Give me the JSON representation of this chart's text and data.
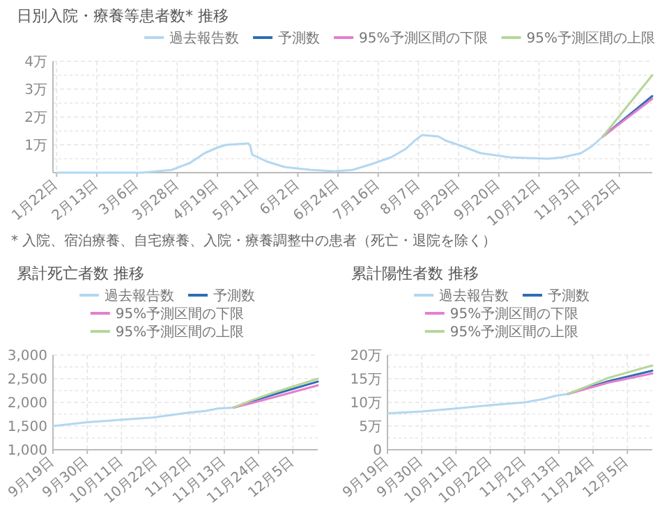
{
  "chart_data": [
    {
      "type": "line",
      "title": "日別入院・療養等患者数* 推移",
      "legend": "top right",
      "grid": true,
      "xlim": [
        "--01-20",
        "--12-13"
      ],
      "xticks": [
        {
          "value": "--01-22",
          "label": "1月22日"
        },
        {
          "value": "--02-13",
          "label": "2月13日"
        },
        {
          "value": "--03-06",
          "label": "3月6日"
        },
        {
          "value": "--03-28",
          "label": "3月28日"
        },
        {
          "value": "--04-19",
          "label": "4月19日"
        },
        {
          "value": "--05-11",
          "label": "5月11日"
        },
        {
          "value": "--06-02",
          "label": "6月2日"
        },
        {
          "value": "--06-24",
          "label": "6月24日"
        },
        {
          "value": "--07-16",
          "label": "7月16日"
        },
        {
          "value": "--08-07",
          "label": "8月7日"
        },
        {
          "value": "--08-29",
          "label": "8月29日"
        },
        {
          "value": "--09-20",
          "label": "9月20日"
        },
        {
          "value": "--10-12",
          "label": "10月12日"
        },
        {
          "value": "--11-03",
          "label": "11月3日"
        },
        {
          "value": "--11-25",
          "label": "11月25日"
        }
      ],
      "ylim": [
        0,
        4
      ],
      "yticks": [
        {
          "value": 0.5,
          "label": null
        },
        {
          "value": 1,
          "label": "1万"
        },
        {
          "value": 1.5,
          "label": null
        },
        {
          "value": 2,
          "label": "2万"
        },
        {
          "value": 2.5,
          "label": null
        },
        {
          "value": 3,
          "label": "3万"
        },
        {
          "value": 3.5,
          "label": null
        },
        {
          "value": 4,
          "label": "4万"
        }
      ],
      "series": [
        {
          "name": "過去報告数",
          "color": "#b3d7f0",
          "x": [
            "--01-22",
            "--03-09",
            "--03-25",
            "--04-04",
            "--04-12",
            "--04-19",
            "--04-24",
            "--05-06",
            "--05-07",
            "--05-08",
            "--05-16",
            "--05-26",
            "--06-09",
            "--06-22",
            "--07-02",
            "--07-12",
            "--07-23",
            "--07-31",
            "--08-05",
            "--08-09",
            "--08-18",
            "--08-22",
            "--08-31",
            "--09-10",
            "--09-21",
            "--09-26",
            "--10-17",
            "--10-25",
            "--11-04",
            "--11-10",
            "--11-16"
          ],
          "values": [
            0,
            0,
            0.1,
            0.35,
            0.7,
            0.9,
            1,
            1.05,
            0.95,
            0.65,
            0.4,
            0.2,
            0.1,
            0.05,
            0.1,
            0.3,
            0.55,
            0.85,
            1.15,
            1.35,
            1.3,
            1.15,
            0.95,
            0.7,
            0.6,
            0.55,
            0.5,
            0.55,
            0.7,
            0.95,
            1.3
          ]
        },
        {
          "name": "予測数",
          "color": "#2f6db5",
          "x": [
            "--11-16",
            "--12-13"
          ],
          "values": [
            1.3,
            2.75
          ]
        },
        {
          "name": "95%予測区間の下限",
          "color": "#e57fcf",
          "x": [
            "--11-16",
            "--12-13"
          ],
          "values": [
            1.3,
            2.65
          ]
        },
        {
          "name": "95%予測区間の上限",
          "color": "#b5d69a",
          "x": [
            "--11-16",
            "--12-13"
          ],
          "values": [
            1.3,
            3.5
          ]
        }
      ],
      "annotations": [
        "* 入院、宿泊療養、自宅療養、入院・療養調整中の患者（死亡・退院を除く）"
      ]
    },
    {
      "type": "line",
      "title": "累計死亡者数 推移",
      "legend": "top",
      "grid": true,
      "xlim": [
        "--09-19",
        "--12-13"
      ],
      "xticks": [
        {
          "value": "--09-19",
          "label": "9月19日"
        },
        {
          "value": "--09-30",
          "label": "9月30日"
        },
        {
          "value": "--10-11",
          "label": "10月11日"
        },
        {
          "value": "--10-22",
          "label": "10月22日"
        },
        {
          "value": "--11-02",
          "label": "11月2日"
        },
        {
          "value": "--11-13",
          "label": "11月13日"
        },
        {
          "value": "--11-24",
          "label": "11月24日"
        },
        {
          "value": "--12-05",
          "label": "12月5日"
        }
      ],
      "ylim": [
        1000,
        3000
      ],
      "yticks": [
        {
          "value": 1000,
          "label": "1,000"
        },
        {
          "value": 1250,
          "label": null
        },
        {
          "value": 1500,
          "label": "1,500"
        },
        {
          "value": 1750,
          "label": null
        },
        {
          "value": 2000,
          "label": "2,000"
        },
        {
          "value": 2250,
          "label": null
        },
        {
          "value": 2500,
          "label": "2,500"
        },
        {
          "value": 2750,
          "label": null
        },
        {
          "value": 3000,
          "label": "3,000"
        }
      ],
      "series": [
        {
          "name": "過去報告数",
          "color": "#b3d7f0",
          "x": [
            "--09-19",
            "--09-30",
            "--10-10",
            "--10-21",
            "--11-01",
            "--11-07",
            "--11-11",
            "--11-16"
          ],
          "values": [
            1500,
            1580,
            1630,
            1680,
            1780,
            1820,
            1870,
            1890
          ]
        },
        {
          "name": "予測数",
          "color": "#2f6db5",
          "x": [
            "--11-16",
            "--11-22",
            "--11-29",
            "--12-13"
          ],
          "values": [
            1890,
            2030,
            2170,
            2440
          ]
        },
        {
          "name": "95%予測区間の下限",
          "color": "#e57fcf",
          "x": [
            "--11-16",
            "--11-22",
            "--11-29",
            "--12-13"
          ],
          "values": [
            1890,
            1990,
            2110,
            2360
          ]
        },
        {
          "name": "95%予測区間の上限",
          "color": "#b5d69a",
          "x": [
            "--11-16",
            "--11-22",
            "--11-29",
            "--12-13"
          ],
          "values": [
            1890,
            2050,
            2210,
            2500
          ]
        }
      ]
    },
    {
      "type": "line",
      "title": "累計陽性者数 推移",
      "legend": "top",
      "grid": true,
      "xlim": [
        "--09-19",
        "--12-13"
      ],
      "xticks": [
        {
          "value": "--09-19",
          "label": "9月19日"
        },
        {
          "value": "--09-30",
          "label": "9月30日"
        },
        {
          "value": "--10-11",
          "label": "10月11日"
        },
        {
          "value": "--10-22",
          "label": "10月22日"
        },
        {
          "value": "--11-02",
          "label": "11月2日"
        },
        {
          "value": "--11-13",
          "label": "11月13日"
        },
        {
          "value": "--11-24",
          "label": "11月24日"
        },
        {
          "value": "--12-05",
          "label": "12月5日"
        }
      ],
      "ylim": [
        0,
        20
      ],
      "yticks": [
        0,
        {
          "value": 2.5,
          "label": null
        },
        {
          "value": 5,
          "label": "5万"
        },
        {
          "value": 7.5,
          "label": null
        },
        {
          "value": 10,
          "label": "10万"
        },
        {
          "value": 12.5,
          "label": null
        },
        {
          "value": 15,
          "label": "15万"
        },
        {
          "value": 17.5,
          "label": null
        },
        {
          "value": 20,
          "label": "20万"
        }
      ],
      "series": [
        {
          "name": "過去報告数",
          "color": "#b3d7f0",
          "x": [
            "--09-19",
            "--09-30",
            "--10-11",
            "--10-22",
            "--11-02",
            "--11-08",
            "--11-12",
            "--11-16"
          ],
          "values": [
            7.7,
            8.1,
            8.7,
            9.4,
            10,
            10.7,
            11.4,
            11.8
          ]
        },
        {
          "name": "予測数",
          "color": "#2f6db5",
          "x": [
            "--11-16",
            "--11-29",
            "--12-13"
          ],
          "values": [
            11.8,
            14.5,
            16.7
          ]
        },
        {
          "name": "95%予測区間の下限",
          "color": "#e57fcf",
          "x": [
            "--11-16",
            "--11-29",
            "--12-13"
          ],
          "values": [
            11.8,
            14.2,
            16.1
          ]
        },
        {
          "name": "95%予測区間の上限",
          "color": "#b5d69a",
          "x": [
            "--11-16",
            "--11-29",
            "--12-13"
          ],
          "values": [
            11.8,
            15.2,
            17.8
          ]
        }
      ]
    }
  ]
}
